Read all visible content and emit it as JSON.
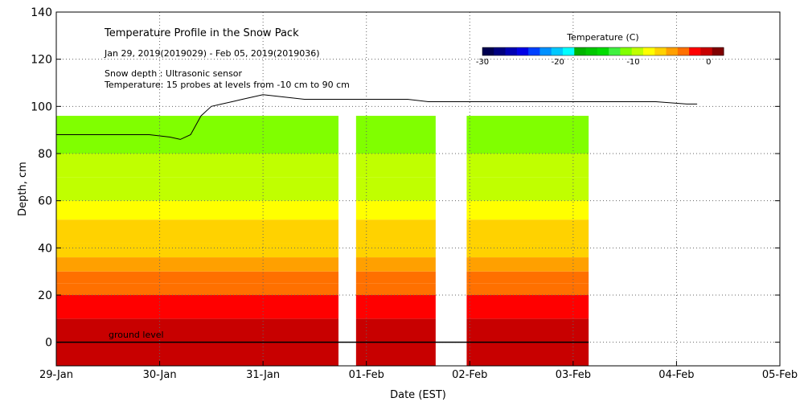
{
  "chart_data": {
    "type": "heatmap",
    "title": "Temperature Profile in the Snow Pack",
    "subtitle": "Jan 29, 2019(2019029) - Feb 05, 2019(2019036)",
    "notes": [
      "Snow depth : Ultrasonic sensor",
      "Temperature: 15 probes at levels from -10 cm to 90 cm"
    ],
    "annotation": "ground level",
    "xlabel": "Date (EST)",
    "ylabel": "Depth, cm",
    "x_ticks": [
      "29-Jan",
      "30-Jan",
      "31-Jan",
      "01-Feb",
      "02-Feb",
      "03-Feb",
      "04-Feb",
      "05-Feb"
    ],
    "x_range_days": [
      0,
      7
    ],
    "ylim": [
      -10,
      140
    ],
    "y_ticks": [
      0,
      20,
      40,
      60,
      80,
      100,
      120,
      140
    ],
    "grid": true,
    "colorbar": {
      "label": "Temperature (C)",
      "range": [
        -30,
        2
      ],
      "ticks": [
        -30,
        -20,
        -10,
        0
      ],
      "colors": [
        "#000050",
        "#00007f",
        "#0000b4",
        "#0000e6",
        "#0040ff",
        "#0090ff",
        "#00c8ff",
        "#00ffff",
        "#00b400",
        "#00c800",
        "#00dc00",
        "#40f040",
        "#80ff00",
        "#c0ff00",
        "#ffff00",
        "#ffd200",
        "#ffa000",
        "#ff7000",
        "#ff0000",
        "#c80000",
        "#800000"
      ]
    },
    "temperature_bands": [
      {
        "t": -1,
        "from": -10,
        "to": 10
      },
      {
        "t": -2,
        "from": 10,
        "to": 20
      },
      {
        "t": -3,
        "from": 20,
        "to": 25
      },
      {
        "t": -4,
        "from": 25,
        "to": 30
      },
      {
        "t": -5,
        "from": 30,
        "to": 36
      },
      {
        "t": -6,
        "from": 36,
        "to": 42
      },
      {
        "t": -7,
        "from": 42,
        "to": 52
      },
      {
        "t": -8,
        "from": 52,
        "to": 60
      },
      {
        "t": -9,
        "from": 60,
        "to": 70
      },
      {
        "t": -10,
        "from": 70,
        "to": 80
      },
      {
        "t": -11,
        "from": 80,
        "to": 96
      }
    ],
    "data_segments": [
      {
        "start": 0.0,
        "end": 2.73
      },
      {
        "start": 2.9,
        "end": 3.67
      },
      {
        "start": 3.97,
        "end": 5.15
      }
    ],
    "snow_depth": {
      "x": [
        0.0,
        0.3,
        0.6,
        0.9,
        1.1,
        1.2,
        1.3,
        1.4,
        1.5,
        1.6,
        1.7,
        1.8,
        1.9,
        2.0,
        2.2,
        2.4,
        2.6,
        2.8,
        3.0,
        3.2,
        3.4,
        3.6,
        3.8,
        4.0,
        4.3,
        4.6,
        4.9,
        5.2,
        5.5,
        5.8,
        6.1,
        6.2
      ],
      "y": [
        88,
        88,
        88,
        88,
        87,
        86,
        88,
        96,
        100,
        101,
        102,
        103,
        104,
        105,
        104,
        103,
        103,
        103,
        103,
        103,
        103,
        102,
        102,
        102,
        102,
        102,
        102,
        102,
        102,
        102,
        101,
        101
      ]
    }
  }
}
